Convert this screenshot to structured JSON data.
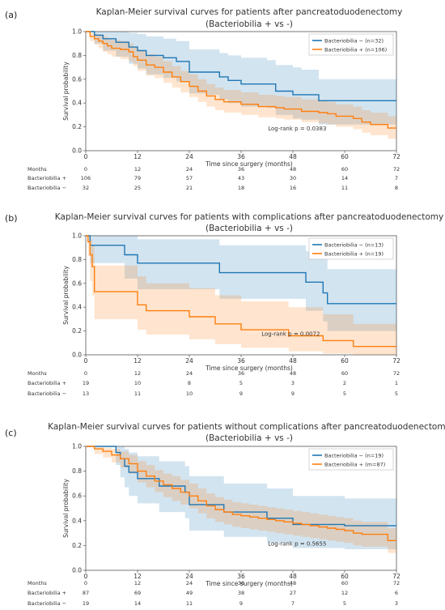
{
  "panels": [
    {
      "label": "(a)",
      "chart_data": {
        "type": "line",
        "title": "Kaplan-Meier survival curves for patients after pancreatoduodenectomy",
        "subtitle": "(Bacteriobilia + vs -)",
        "xlabel": "Time since surgery (months)",
        "ylabel": "Survival probability",
        "xlim": [
          0,
          72
        ],
        "ylim": [
          0,
          1.0
        ],
        "xticks": [
          0,
          12,
          24,
          36,
          48,
          60,
          72
        ],
        "yticks": [
          0.0,
          0.2,
          0.4,
          0.6,
          0.8,
          1.0
        ],
        "legend_position": "top-right",
        "annotation": "Log-rank p = 0.0383",
        "series": [
          {
            "name": "Bacteriobilia − (n=32)",
            "color": "#1f77b4",
            "x": [
              0,
              2,
              4,
              7,
              10,
              12,
              14,
              18,
              21,
              24,
              28,
              31,
              33,
              36,
              42,
              44,
              48,
              50,
              54,
              72
            ],
            "y": [
              1.0,
              0.97,
              0.94,
              0.91,
              0.87,
              0.84,
              0.8,
              0.78,
              0.75,
              0.66,
              0.66,
              0.62,
              0.59,
              0.56,
              0.56,
              0.5,
              0.47,
              0.47,
              0.42,
              0.42
            ],
            "ci_upper": [
              1.0,
              1.0,
              1.0,
              1.0,
              0.99,
              0.98,
              0.96,
              0.94,
              0.92,
              0.85,
              0.85,
              0.82,
              0.8,
              0.78,
              0.76,
              0.72,
              0.7,
              0.68,
              0.6,
              0.6
            ],
            "ci_lower": [
              1.0,
              0.9,
              0.84,
              0.79,
              0.73,
              0.69,
              0.64,
              0.61,
              0.58,
              0.48,
              0.47,
              0.43,
              0.4,
              0.37,
              0.36,
              0.3,
              0.27,
              0.26,
              0.22,
              0.22
            ]
          },
          {
            "name": "Bacteriobilia + (n=106)",
            "color": "#ff7f0e",
            "x": [
              0,
              1,
              2,
              3,
              4,
              5,
              6,
              8,
              10,
              11,
              12,
              14,
              16,
              18,
              20,
              22,
              24,
              26,
              28,
              30,
              32,
              34,
              36,
              38,
              40,
              42,
              44,
              46,
              48,
              50,
              52,
              54,
              56,
              58,
              60,
              62,
              64,
              66,
              68,
              70,
              72
            ],
            "y": [
              1.0,
              0.96,
              0.94,
              0.92,
              0.9,
              0.88,
              0.86,
              0.85,
              0.83,
              0.79,
              0.76,
              0.72,
              0.7,
              0.66,
              0.62,
              0.58,
              0.54,
              0.5,
              0.46,
              0.43,
              0.41,
              0.41,
              0.39,
              0.39,
              0.37,
              0.37,
              0.36,
              0.35,
              0.35,
              0.33,
              0.33,
              0.32,
              0.31,
              0.29,
              0.29,
              0.27,
              0.24,
              0.22,
              0.22,
              0.19,
              0.19
            ],
            "ci_upper": [
              1.0,
              0.99,
              0.98,
              0.97,
              0.96,
              0.94,
              0.93,
              0.92,
              0.9,
              0.87,
              0.84,
              0.81,
              0.79,
              0.75,
              0.71,
              0.67,
              0.64,
              0.6,
              0.56,
              0.53,
              0.51,
              0.51,
              0.49,
              0.49,
              0.47,
              0.47,
              0.46,
              0.45,
              0.45,
              0.43,
              0.43,
              0.42,
              0.41,
              0.39,
              0.39,
              0.37,
              0.34,
              0.32,
              0.32,
              0.29,
              0.29
            ],
            "ci_lower": [
              1.0,
              0.92,
              0.89,
              0.86,
              0.83,
              0.81,
              0.79,
              0.77,
              0.75,
              0.71,
              0.67,
              0.63,
              0.61,
              0.57,
              0.53,
              0.49,
              0.45,
              0.41,
              0.37,
              0.34,
              0.32,
              0.32,
              0.3,
              0.3,
              0.28,
              0.28,
              0.27,
              0.26,
              0.26,
              0.24,
              0.24,
              0.23,
              0.22,
              0.2,
              0.2,
              0.18,
              0.15,
              0.13,
              0.13,
              0.1,
              0.1
            ]
          }
        ],
        "risk_table": {
          "header": "Months",
          "times": [
            "0",
            "12",
            "24",
            "36",
            "48",
            "60",
            "72"
          ],
          "rows": [
            {
              "label": "Bacteriobilia +",
              "counts": [
                "106",
                "79",
                "57",
                "43",
                "30",
                "14",
                "7"
              ]
            },
            {
              "label": "Bacteriobilia −",
              "counts": [
                "32",
                "25",
                "21",
                "18",
                "16",
                "11",
                "8"
              ]
            }
          ]
        }
      }
    },
    {
      "label": "(b)",
      "chart_data": {
        "type": "line",
        "title": "Kaplan-Meier survival curves for patients with complications after pancreatoduodenectomy",
        "subtitle": "(Bacteriobilia + vs -)",
        "xlabel": "Time since surgery (months)",
        "ylabel": "Survival probability",
        "xlim": [
          0,
          72
        ],
        "ylim": [
          0,
          1.0
        ],
        "xticks": [
          0,
          12,
          24,
          36,
          48,
          60,
          72
        ],
        "yticks": [
          0.0,
          0.2,
          0.4,
          0.6,
          0.8,
          1.0
        ],
        "legend_position": "top-right",
        "annotation": "Log-rank p = 0.0072",
        "series": [
          {
            "name": "Bacteriobilia − (n=13)",
            "color": "#1f77b4",
            "x": [
              0,
              1,
              9,
              12,
              26,
              31,
              48,
              51,
              55,
              56,
              72
            ],
            "y": [
              1.0,
              0.92,
              0.84,
              0.77,
              0.77,
              0.69,
              0.69,
              0.61,
              0.52,
              0.43,
              0.43
            ],
            "ci_upper": [
              1.0,
              1.0,
              1.0,
              0.97,
              0.97,
              0.92,
              0.92,
              0.87,
              0.81,
              0.72,
              0.72
            ],
            "ci_lower": [
              1.0,
              0.77,
              0.64,
              0.55,
              0.55,
              0.47,
              0.47,
              0.37,
              0.28,
              0.2,
              0.2
            ]
          },
          {
            "name": "Bacteriobilia + (n=19)",
            "color": "#ff7f0e",
            "x": [
              0,
              0.5,
              1,
              1.5,
              2,
              12,
              14,
              24,
              30,
              36,
              45,
              47,
              48,
              55,
              62,
              72
            ],
            "y": [
              1.0,
              0.95,
              0.84,
              0.74,
              0.53,
              0.42,
              0.37,
              0.32,
              0.26,
              0.21,
              0.21,
              0.16,
              0.16,
              0.12,
              0.07,
              0.07
            ],
            "ci_upper": [
              1.0,
              1.0,
              0.97,
              0.92,
              0.75,
              0.66,
              0.6,
              0.56,
              0.5,
              0.45,
              0.45,
              0.4,
              0.4,
              0.34,
              0.26,
              0.26
            ],
            "ci_lower": [
              1.0,
              0.83,
              0.62,
              0.5,
              0.3,
              0.21,
              0.17,
              0.13,
              0.09,
              0.06,
              0.06,
              0.03,
              0.03,
              0.01,
              0.0,
              0.0
            ]
          }
        ],
        "risk_table": {
          "header": "Months",
          "times": [
            "0",
            "12",
            "24",
            "36",
            "48",
            "60",
            "72"
          ],
          "rows": [
            {
              "label": "Bacteriobilia +",
              "counts": [
                "19",
                "10",
                "8",
                "5",
                "3",
                "2",
                "1"
              ]
            },
            {
              "label": "Bacteriobilia −",
              "counts": [
                "13",
                "11",
                "10",
                "9",
                "9",
                "5",
                "5"
              ]
            }
          ]
        }
      }
    },
    {
      "label": "(c)",
      "chart_data": {
        "type": "line",
        "title": "Kaplan-Meier survival curves for patients without complications after pancreatoduodenectomy",
        "subtitle": "(Bacteriobilia + vs -)",
        "xlabel": "Time since surgery (months)",
        "ylabel": "Survival probability",
        "xlim": [
          0,
          72
        ],
        "ylim": [
          0,
          1.0
        ],
        "xticks": [
          0,
          12,
          24,
          36,
          48,
          60,
          72
        ],
        "yticks": [
          0.0,
          0.2,
          0.4,
          0.6,
          0.8,
          1.0
        ],
        "legend_position": "top-right",
        "annotation": "Log-rank p = 0.5655",
        "series": [
          {
            "name": "Bacteriobilia − (n=19)",
            "color": "#1f77b4",
            "x": [
              0,
              7,
              8,
              9,
              10,
              12,
              15,
              17,
              20,
              23,
              24,
              30,
              32,
              34,
              36,
              42,
              46,
              48,
              56,
              60,
              72
            ],
            "y": [
              1.0,
              0.95,
              0.9,
              0.84,
              0.79,
              0.74,
              0.74,
              0.68,
              0.68,
              0.63,
              0.53,
              0.53,
              0.47,
              0.47,
              0.47,
              0.42,
              0.42,
              0.37,
              0.37,
              0.36,
              0.36
            ],
            "ci_upper": [
              1.0,
              1.0,
              1.0,
              0.98,
              0.95,
              0.92,
              0.92,
              0.88,
              0.88,
              0.84,
              0.76,
              0.76,
              0.7,
              0.7,
              0.7,
              0.66,
              0.66,
              0.6,
              0.6,
              0.58,
              0.58
            ],
            "ci_lower": [
              1.0,
              0.85,
              0.75,
              0.67,
              0.6,
              0.54,
              0.54,
              0.47,
              0.47,
              0.42,
              0.32,
              0.32,
              0.27,
              0.27,
              0.27,
              0.22,
              0.22,
              0.18,
              0.18,
              0.17,
              0.17
            ]
          },
          {
            "name": "Bacteriobilia + (m=87)",
            "color": "#ff7f0e",
            "x": [
              0,
              2,
              4,
              6,
              8,
              10,
              12,
              14,
              16,
              18,
              20,
              22,
              24,
              26,
              28,
              30,
              32,
              34,
              36,
              38,
              40,
              42,
              44,
              46,
              48,
              50,
              52,
              54,
              56,
              58,
              60,
              62,
              64,
              66,
              68,
              70,
              72
            ],
            "y": [
              1.0,
              0.98,
              0.96,
              0.93,
              0.9,
              0.86,
              0.8,
              0.76,
              0.72,
              0.69,
              0.66,
              0.63,
              0.6,
              0.56,
              0.52,
              0.49,
              0.47,
              0.45,
              0.44,
              0.43,
              0.42,
              0.41,
              0.4,
              0.39,
              0.38,
              0.37,
              0.36,
              0.35,
              0.34,
              0.33,
              0.32,
              0.3,
              0.29,
              0.29,
              0.29,
              0.24,
              0.24
            ],
            "ci_upper": [
              1.0,
              1.0,
              0.99,
              0.98,
              0.96,
              0.93,
              0.88,
              0.85,
              0.81,
              0.78,
              0.76,
              0.73,
              0.7,
              0.66,
              0.62,
              0.59,
              0.57,
              0.55,
              0.54,
              0.53,
              0.52,
              0.51,
              0.5,
              0.49,
              0.48,
              0.47,
              0.46,
              0.45,
              0.44,
              0.43,
              0.42,
              0.4,
              0.39,
              0.39,
              0.39,
              0.34,
              0.34
            ],
            "ci_lower": [
              1.0,
              0.94,
              0.91,
              0.87,
              0.83,
              0.78,
              0.71,
              0.67,
              0.63,
              0.59,
              0.56,
              0.53,
              0.5,
              0.46,
              0.42,
              0.39,
              0.37,
              0.35,
              0.34,
              0.33,
              0.32,
              0.31,
              0.3,
              0.29,
              0.28,
              0.27,
              0.26,
              0.25,
              0.24,
              0.23,
              0.22,
              0.2,
              0.19,
              0.19,
              0.19,
              0.14,
              0.14
            ]
          }
        ],
        "risk_table": {
          "header": "Months",
          "times": [
            "0",
            "12",
            "24",
            "36",
            "48",
            "60",
            "72"
          ],
          "rows": [
            {
              "label": "Bacteriobilia +",
              "counts": [
                "87",
                "69",
                "49",
                "38",
                "27",
                "12",
                "6"
              ]
            },
            {
              "label": "Bacteriobilia −",
              "counts": [
                "19",
                "14",
                "11",
                "9",
                "7",
                "5",
                "3"
              ]
            }
          ]
        }
      }
    }
  ]
}
